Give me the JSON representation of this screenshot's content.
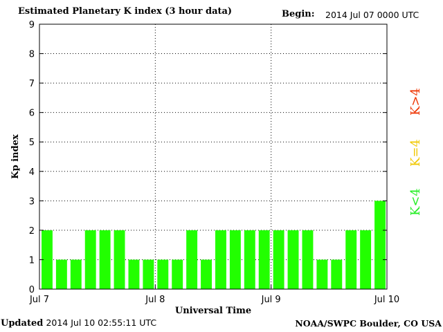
{
  "header": {
    "title": "Estimated Planetary K index (3 hour data)",
    "begin_label": "Begin:",
    "begin_value": "2014 Jul 07 0000 UTC"
  },
  "footer": {
    "updated_label": "Updated",
    "updated_value": "2014 Jul 10 02:55:11 UTC",
    "source": "NOAA/SWPC Boulder, CO USA"
  },
  "legend": {
    "below": "K<4",
    "equal": "K=4",
    "above": "K>4",
    "colors": {
      "below": "#22ee22",
      "equal": "#f0c800",
      "above": "#ee3300"
    }
  },
  "chart_data": {
    "type": "bar",
    "xlabel": "Universal Time",
    "ylabel": "Kp index",
    "ylim": [
      0,
      9
    ],
    "yticks": [
      "0",
      "1",
      "2",
      "3",
      "4",
      "5",
      "6",
      "7",
      "8",
      "9"
    ],
    "xticks": [
      "Jul 7",
      "Jul 8",
      "Jul 9",
      "Jul 10"
    ],
    "bar_color": "#22ff00",
    "grid": "dotted",
    "values": [
      2,
      1,
      1,
      2,
      2,
      2,
      1,
      1,
      1,
      1,
      2,
      1,
      2,
      2,
      2,
      2,
      2,
      2,
      2,
      1,
      1,
      2,
      2,
      3
    ]
  }
}
